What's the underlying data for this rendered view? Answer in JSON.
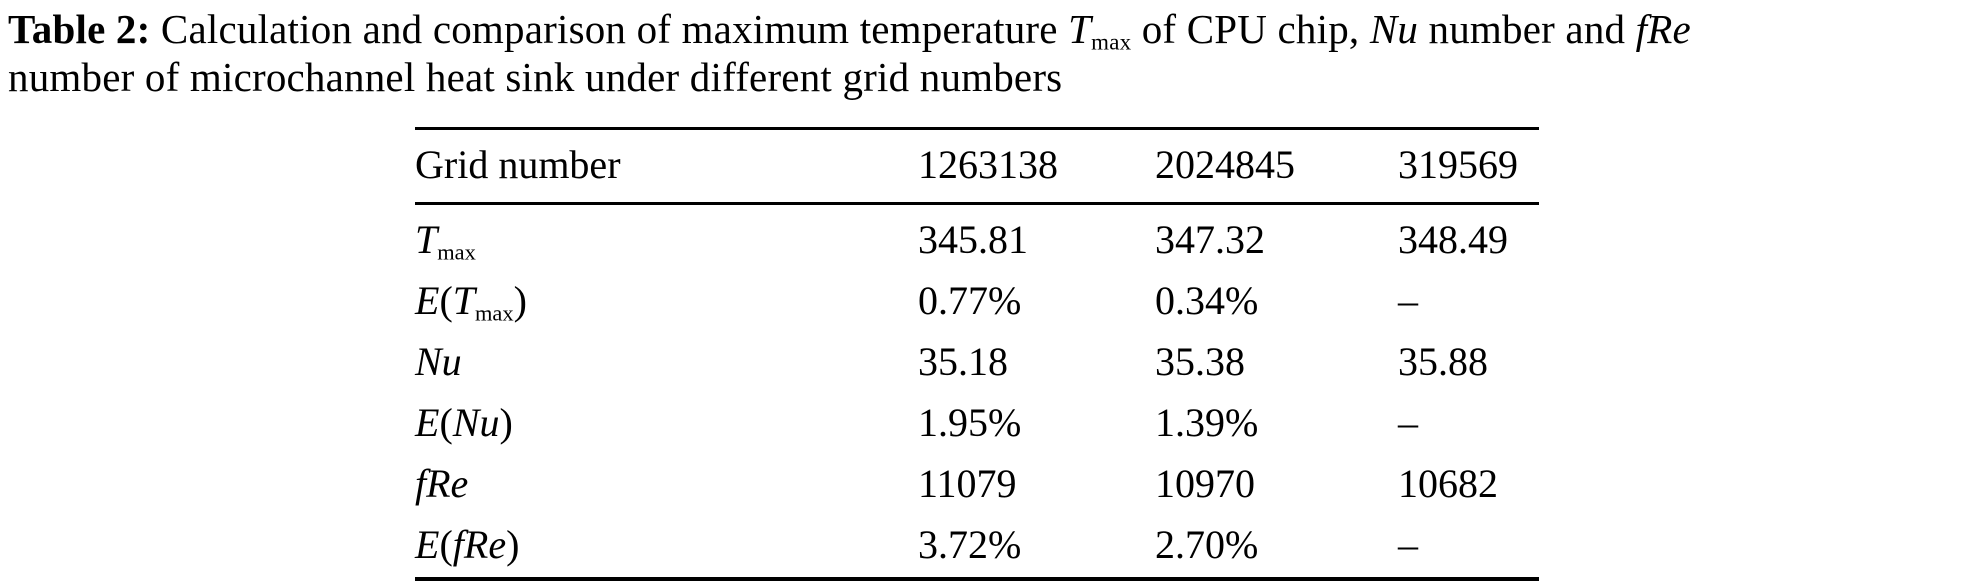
{
  "colors": {
    "background": "#ffffff",
    "text": "#000000",
    "rule": "#000000"
  },
  "caption": {
    "segments": [
      {
        "text": "Table 2:",
        "style": "bold"
      },
      {
        "text": " Calculation and comparison of maximum temperature ",
        "style": "normal"
      },
      {
        "text": "T",
        "style": "italic"
      },
      {
        "text": "max",
        "style": "sub"
      },
      {
        "text": " of CPU chip, ",
        "style": "normal"
      },
      {
        "text": "Nu",
        "style": "italic"
      },
      {
        "text": " number and ",
        "style": "normal"
      },
      {
        "text": "fRe",
        "style": "italic"
      },
      {
        "text": "number of microchannel heat sink under different grid numbers",
        "style": "normal"
      }
    ]
  },
  "table": {
    "header": {
      "label": "Grid number",
      "values": [
        "1263138",
        "2024845",
        "319569"
      ]
    },
    "rows": [
      {
        "name": "T_max",
        "label_segments": [
          {
            "text": "T",
            "style": "italic"
          },
          {
            "text": "max",
            "style": "sub"
          }
        ],
        "values": [
          "345.81",
          "347.32",
          "348.49"
        ]
      },
      {
        "name": "E(T_max)",
        "label_segments": [
          {
            "text": "E",
            "style": "italic"
          },
          {
            "text": "(",
            "style": "normal"
          },
          {
            "text": "T",
            "style": "italic"
          },
          {
            "text": "max",
            "style": "sub"
          },
          {
            "text": ")",
            "style": "normal"
          }
        ],
        "values": [
          "0.77%",
          "0.34%",
          "–"
        ]
      },
      {
        "name": "Nu",
        "label_segments": [
          {
            "text": "Nu",
            "style": "italic"
          }
        ],
        "values": [
          "35.18",
          "35.38",
          "35.88"
        ]
      },
      {
        "name": "E(Nu)",
        "label_segments": [
          {
            "text": "E",
            "style": "italic"
          },
          {
            "text": "(",
            "style": "normal"
          },
          {
            "text": "Nu",
            "style": "italic"
          },
          {
            "text": ")",
            "style": "normal"
          }
        ],
        "values": [
          "1.95%",
          "1.39%",
          "–"
        ]
      },
      {
        "name": "fRe",
        "label_segments": [
          {
            "text": "fRe",
            "style": "italic"
          }
        ],
        "values": [
          "11079",
          "10970",
          "10682"
        ]
      },
      {
        "name": "E(fRe)",
        "label_segments": [
          {
            "text": "E",
            "style": "italic"
          },
          {
            "text": "(",
            "style": "normal"
          },
          {
            "text": "fRe",
            "style": "italic"
          },
          {
            "text": ")",
            "style": "normal"
          }
        ],
        "values": [
          "3.72%",
          "2.70%",
          "–"
        ]
      }
    ]
  },
  "chart_data": {
    "type": "table",
    "title": "Table 2: Calculation and comparison of maximum temperature T_max of CPU chip, Nu number and fRe number of microchannel heat sink under different grid numbers",
    "columns": [
      "Grid number",
      "1263138",
      "2024845",
      "319569"
    ],
    "rows": [
      [
        "T_max",
        "345.81",
        "347.32",
        "348.49"
      ],
      [
        "E(T_max)",
        "0.77%",
        "0.34%",
        "–"
      ],
      [
        "Nu",
        "35.18",
        "35.38",
        "35.88"
      ],
      [
        "E(Nu)",
        "1.95%",
        "1.39%",
        "–"
      ],
      [
        "fRe",
        "11079",
        "10970",
        "10682"
      ],
      [
        "E(fRe)",
        "3.72%",
        "2.70%",
        "–"
      ]
    ]
  }
}
